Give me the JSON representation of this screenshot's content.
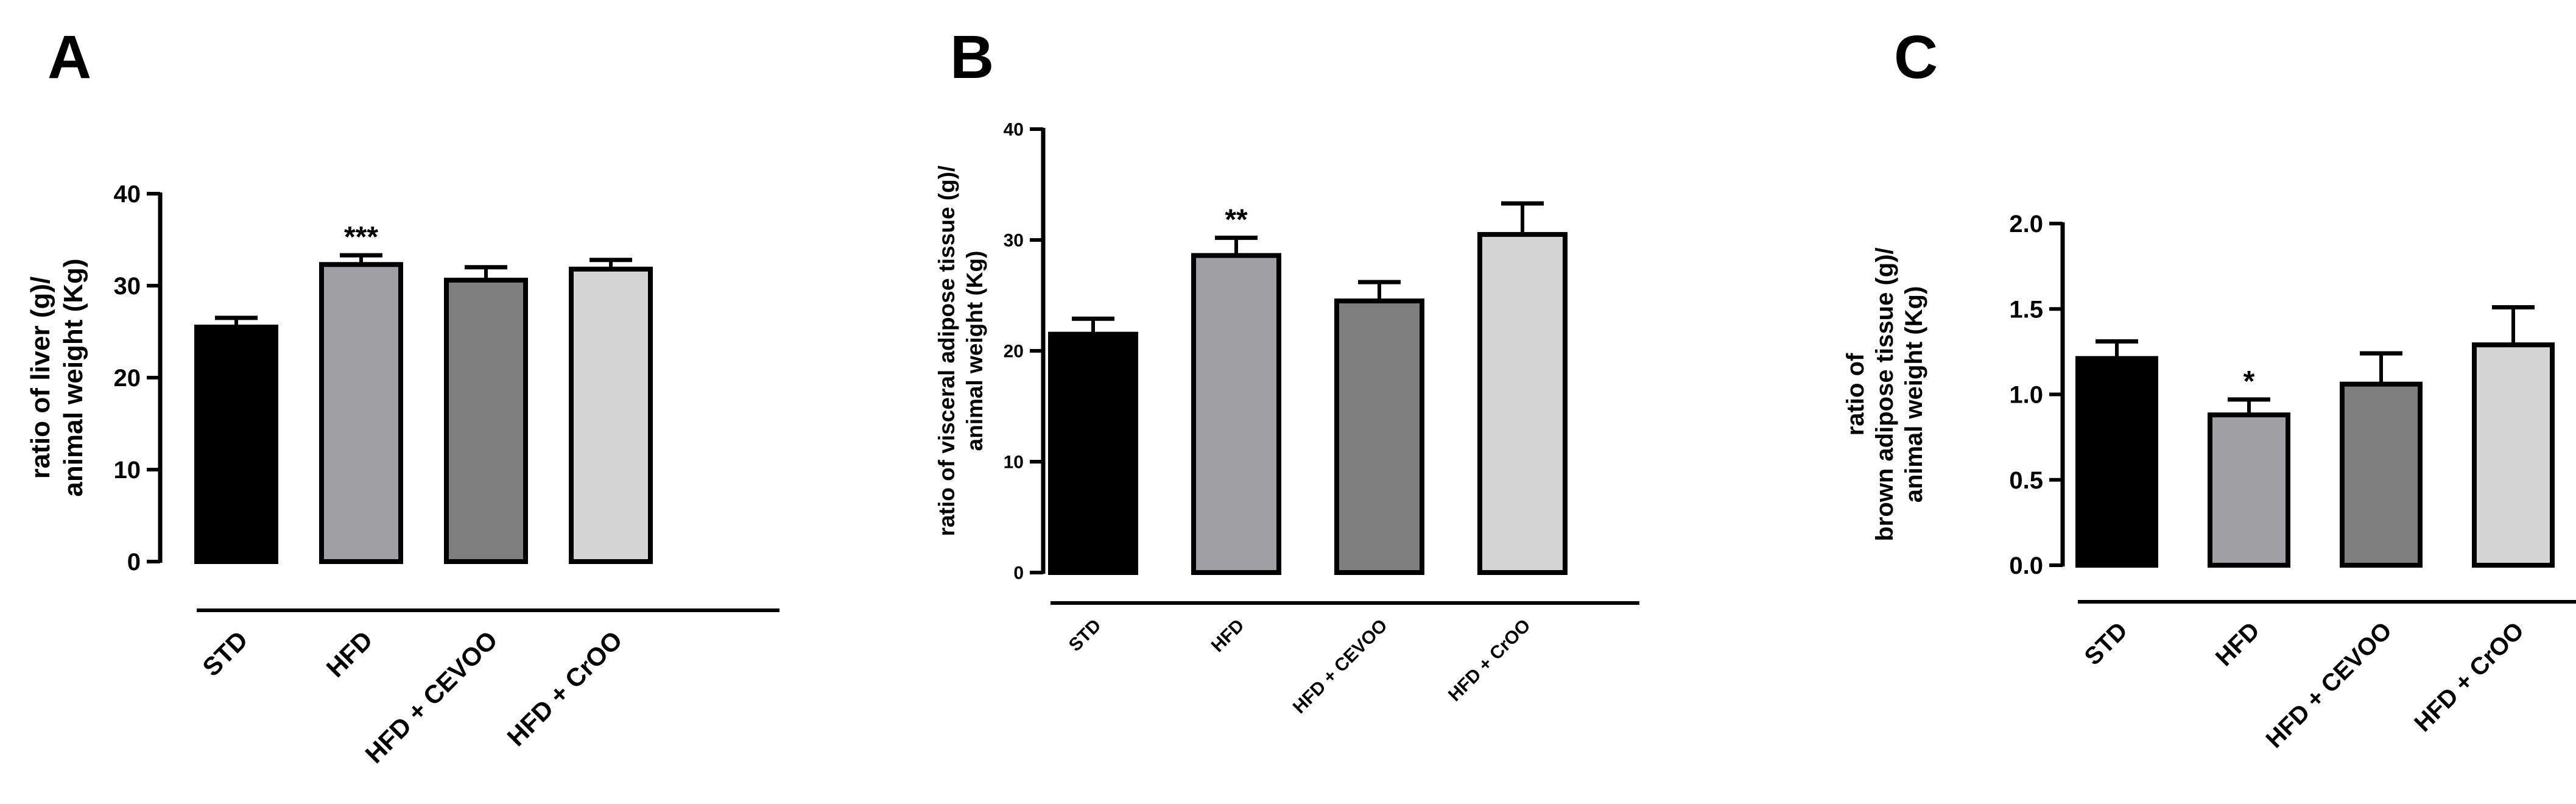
{
  "chart_data": [
    {
      "type": "bar",
      "panel": "A",
      "categories": [
        "STD",
        "HFD",
        "HFD + CEVOO",
        "HFD + CrOO"
      ],
      "values": [
        25.5,
        32.3,
        30.6,
        31.8
      ],
      "errors": [
        1.0,
        1.0,
        1.4,
        1.0
      ],
      "significance": [
        "",
        "***",
        "",
        ""
      ],
      "colors": [
        "#000000",
        "#a0a0a4",
        "#7e7e7e",
        "#d4d4d4"
      ],
      "ylabel_lines": [
        "ratio of liver (g)/",
        "animal weight (Kg)"
      ],
      "ylim": [
        0,
        40
      ],
      "yticks": [
        0,
        10,
        20,
        30,
        40
      ],
      "ytick_labels": [
        "0",
        "10",
        "20",
        "30",
        "40"
      ],
      "xlabel": "",
      "title": ""
    },
    {
      "type": "bar",
      "panel": "B",
      "categories": [
        "STD",
        "HFD",
        "HFD + CEVOO",
        "HFD + CrOO"
      ],
      "values": [
        21.5,
        28.6,
        24.5,
        30.5
      ],
      "errors": [
        1.4,
        1.6,
        1.7,
        2.8
      ],
      "significance": [
        "",
        "**",
        "",
        ""
      ],
      "colors": [
        "#000000",
        "#a0a0a4",
        "#7e7e7e",
        "#d4d4d4"
      ],
      "ylabel_lines": [
        "ratio of visceral adipose tissue (g)/",
        "animal weight (Kg)"
      ],
      "ylim": [
        0,
        40
      ],
      "yticks": [
        0,
        10,
        20,
        30,
        40
      ],
      "ytick_labels": [
        "0",
        "10",
        "20",
        "30",
        "40"
      ],
      "xlabel": "",
      "title": ""
    },
    {
      "type": "bar",
      "panel": "C",
      "categories": [
        "STD",
        "HFD",
        "HFD + CEVOO",
        "HFD + CrOO"
      ],
      "values": [
        1.21,
        0.88,
        1.06,
        1.29
      ],
      "errors": [
        0.1,
        0.09,
        0.18,
        0.22
      ],
      "significance": [
        "",
        "*",
        "",
        ""
      ],
      "colors": [
        "#000000",
        "#a0a0a4",
        "#7e7e7e",
        "#d4d4d4"
      ],
      "ylabel_lines": [
        "ratio of",
        "brown adipose tissue (g)/",
        "animal weight (Kg)"
      ],
      "ylim": [
        0,
        2
      ],
      "yticks": [
        0,
        0.5,
        1,
        1.5,
        2
      ],
      "ytick_labels": [
        "0.0",
        "0.5",
        "1.0",
        "1.5",
        "2.0"
      ],
      "xlabel": "",
      "title": ""
    }
  ]
}
